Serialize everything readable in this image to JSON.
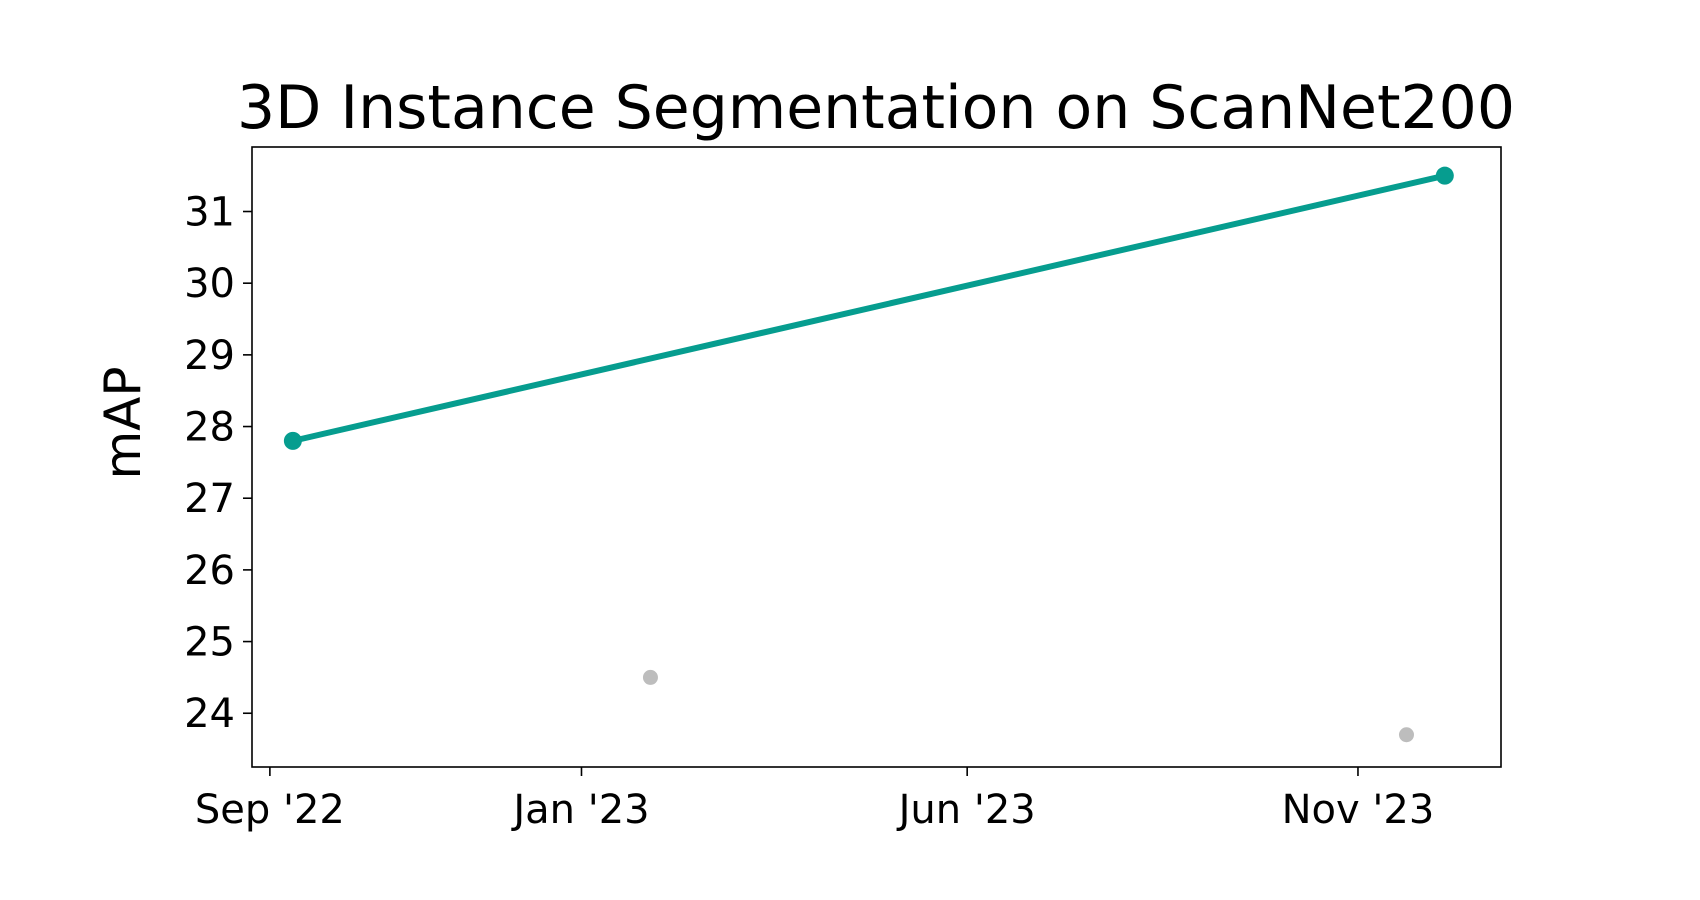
{
  "chart_data": {
    "type": "line",
    "title": "3D Instance Segmentation on ScanNet200",
    "xlabel": "",
    "ylabel": "mAP",
    "xlim": [
      "2022-08-25",
      "2023-12-27"
    ],
    "ylim": [
      23.25,
      31.9
    ],
    "x_ticks": [
      {
        "date": "2022-09-01",
        "label": "Sep '22"
      },
      {
        "date": "2023-01-01",
        "label": "Jan '23"
      },
      {
        "date": "2023-06-01",
        "label": "Jun '23"
      },
      {
        "date": "2023-11-01",
        "label": "Nov '23"
      }
    ],
    "y_ticks": [
      24,
      25,
      26,
      27,
      28,
      29,
      30,
      31
    ],
    "grid": false,
    "series": [
      {
        "color": "#069d8f",
        "style": "line-with-markers",
        "points": [
          {
            "x": "2022-09-10",
            "y": 27.8
          },
          {
            "x": "2023-12-05",
            "y": 31.5
          }
        ]
      },
      {
        "color": "#bdbdbd",
        "style": "markers",
        "points": [
          {
            "x": "2023-01-28",
            "y": 24.5
          },
          {
            "x": "2023-11-20",
            "y": 23.7
          }
        ]
      }
    ]
  }
}
